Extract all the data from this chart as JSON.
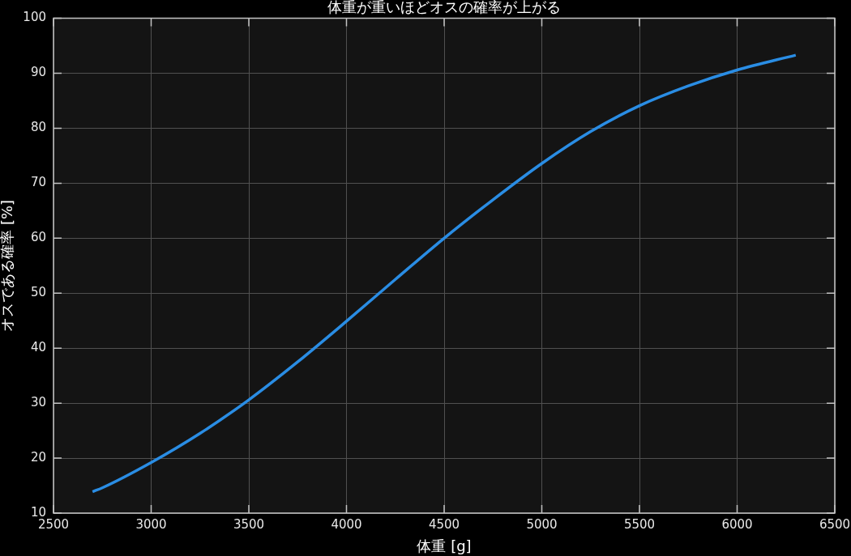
{
  "chart_data": {
    "type": "line",
    "title": "体重が重いほどオスの確率が上がる",
    "xlabel": "体重 [g]",
    "ylabel": "オスである確率 [%]",
    "x": [
      2700,
      2750,
      3000,
      3250,
      3500,
      3750,
      4000,
      4250,
      4500,
      4750,
      5000,
      5250,
      5500,
      5750,
      6000,
      6300
    ],
    "series": [
      {
        "color": "#2a8de4",
        "values": [
          13.9,
          14.6,
          19.2,
          24.5,
          30.6,
          37.5,
          44.9,
          52.5,
          60.0,
          67.0,
          73.6,
          79.4,
          84.1,
          87.7,
          90.6,
          93.3
        ]
      }
    ],
    "xlim": [
      2500,
      6500
    ],
    "xticks": [
      2500,
      3000,
      3500,
      4000,
      4500,
      5000,
      5500,
      6000,
      6500
    ],
    "ylim": [
      10,
      100
    ],
    "yticks": [
      10,
      20,
      30,
      40,
      50,
      60,
      70,
      80,
      90,
      100
    ],
    "grid": true,
    "legend": false,
    "marker": "none",
    "line_style": "solid"
  }
}
